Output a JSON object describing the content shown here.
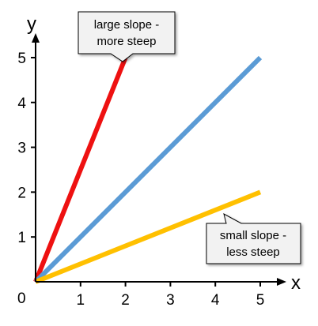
{
  "chart_data": {
    "type": "line",
    "xlabel": "x",
    "ylabel": "y",
    "origin_label": "0",
    "xlim": [
      0,
      5
    ],
    "ylim": [
      0,
      5
    ],
    "x_ticks": [
      "1",
      "2",
      "3",
      "4",
      "5"
    ],
    "y_ticks": [
      "1",
      "2",
      "3",
      "4",
      "5"
    ],
    "grid": false,
    "series": [
      {
        "color": "#ee1111",
        "x": [
          0,
          2
        ],
        "y": [
          0,
          5
        ]
      },
      {
        "color": "#5b9bd5",
        "x": [
          0,
          5
        ],
        "y": [
          0,
          5
        ]
      },
      {
        "color": "#ffc000",
        "x": [
          0,
          5
        ],
        "y": [
          0,
          2
        ]
      }
    ],
    "annotations": [
      {
        "lines": [
          "large slope -",
          "more steep"
        ]
      },
      {
        "lines": [
          "small slope -",
          "less steep"
        ]
      }
    ]
  }
}
